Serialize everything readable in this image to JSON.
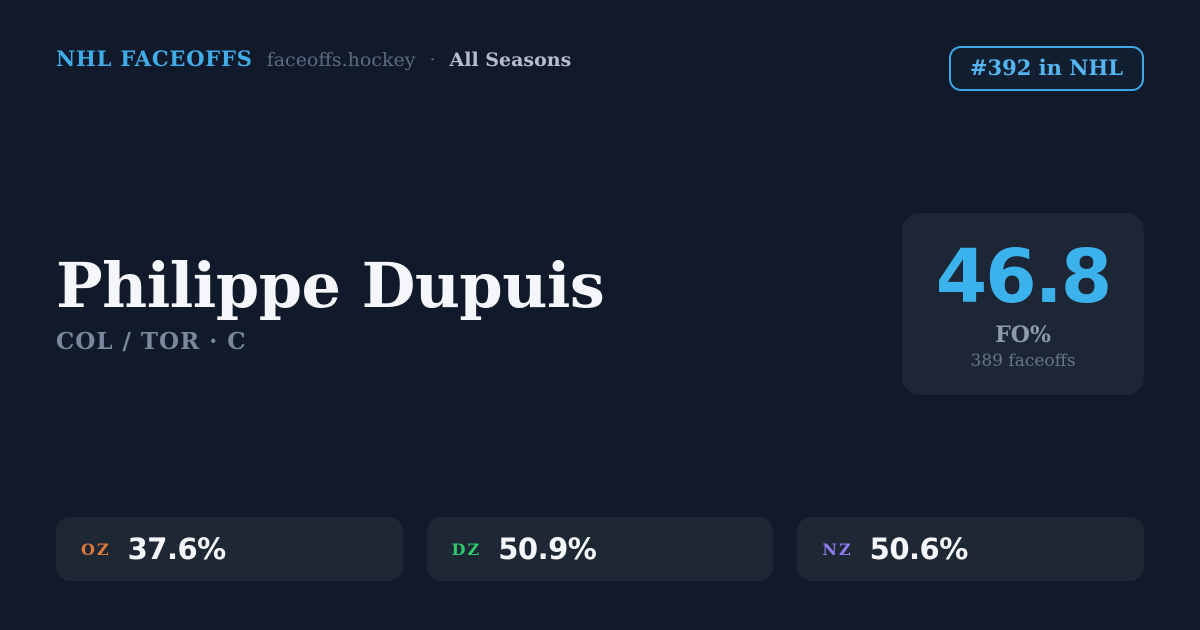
{
  "header": {
    "brand": "NHL FACEOFFS",
    "domain": "faceoffs.hockey",
    "separator": "·",
    "season": "All Seasons",
    "rank_badge": "#392 in NHL"
  },
  "player": {
    "name": "Philippe Dupuis",
    "teams_position": "COL / TOR · C"
  },
  "main_stat": {
    "value": "46.8",
    "label": "FO%",
    "sublabel": "389 faceoffs"
  },
  "zone_stats": [
    {
      "label": "OZ",
      "value": "37.6%",
      "color": "#E07A38"
    },
    {
      "label": "DZ",
      "value": "50.9%",
      "color": "#2FC96D"
    },
    {
      "label": "NZ",
      "value": "50.6%",
      "color": "#8F7AF0"
    }
  ],
  "colors": {
    "background": "#111A2A",
    "card_background": "#1D2635",
    "accent_blue": "#3CB2EC",
    "text_primary": "#F4F6F9",
    "text_muted": "#7B879C"
  }
}
